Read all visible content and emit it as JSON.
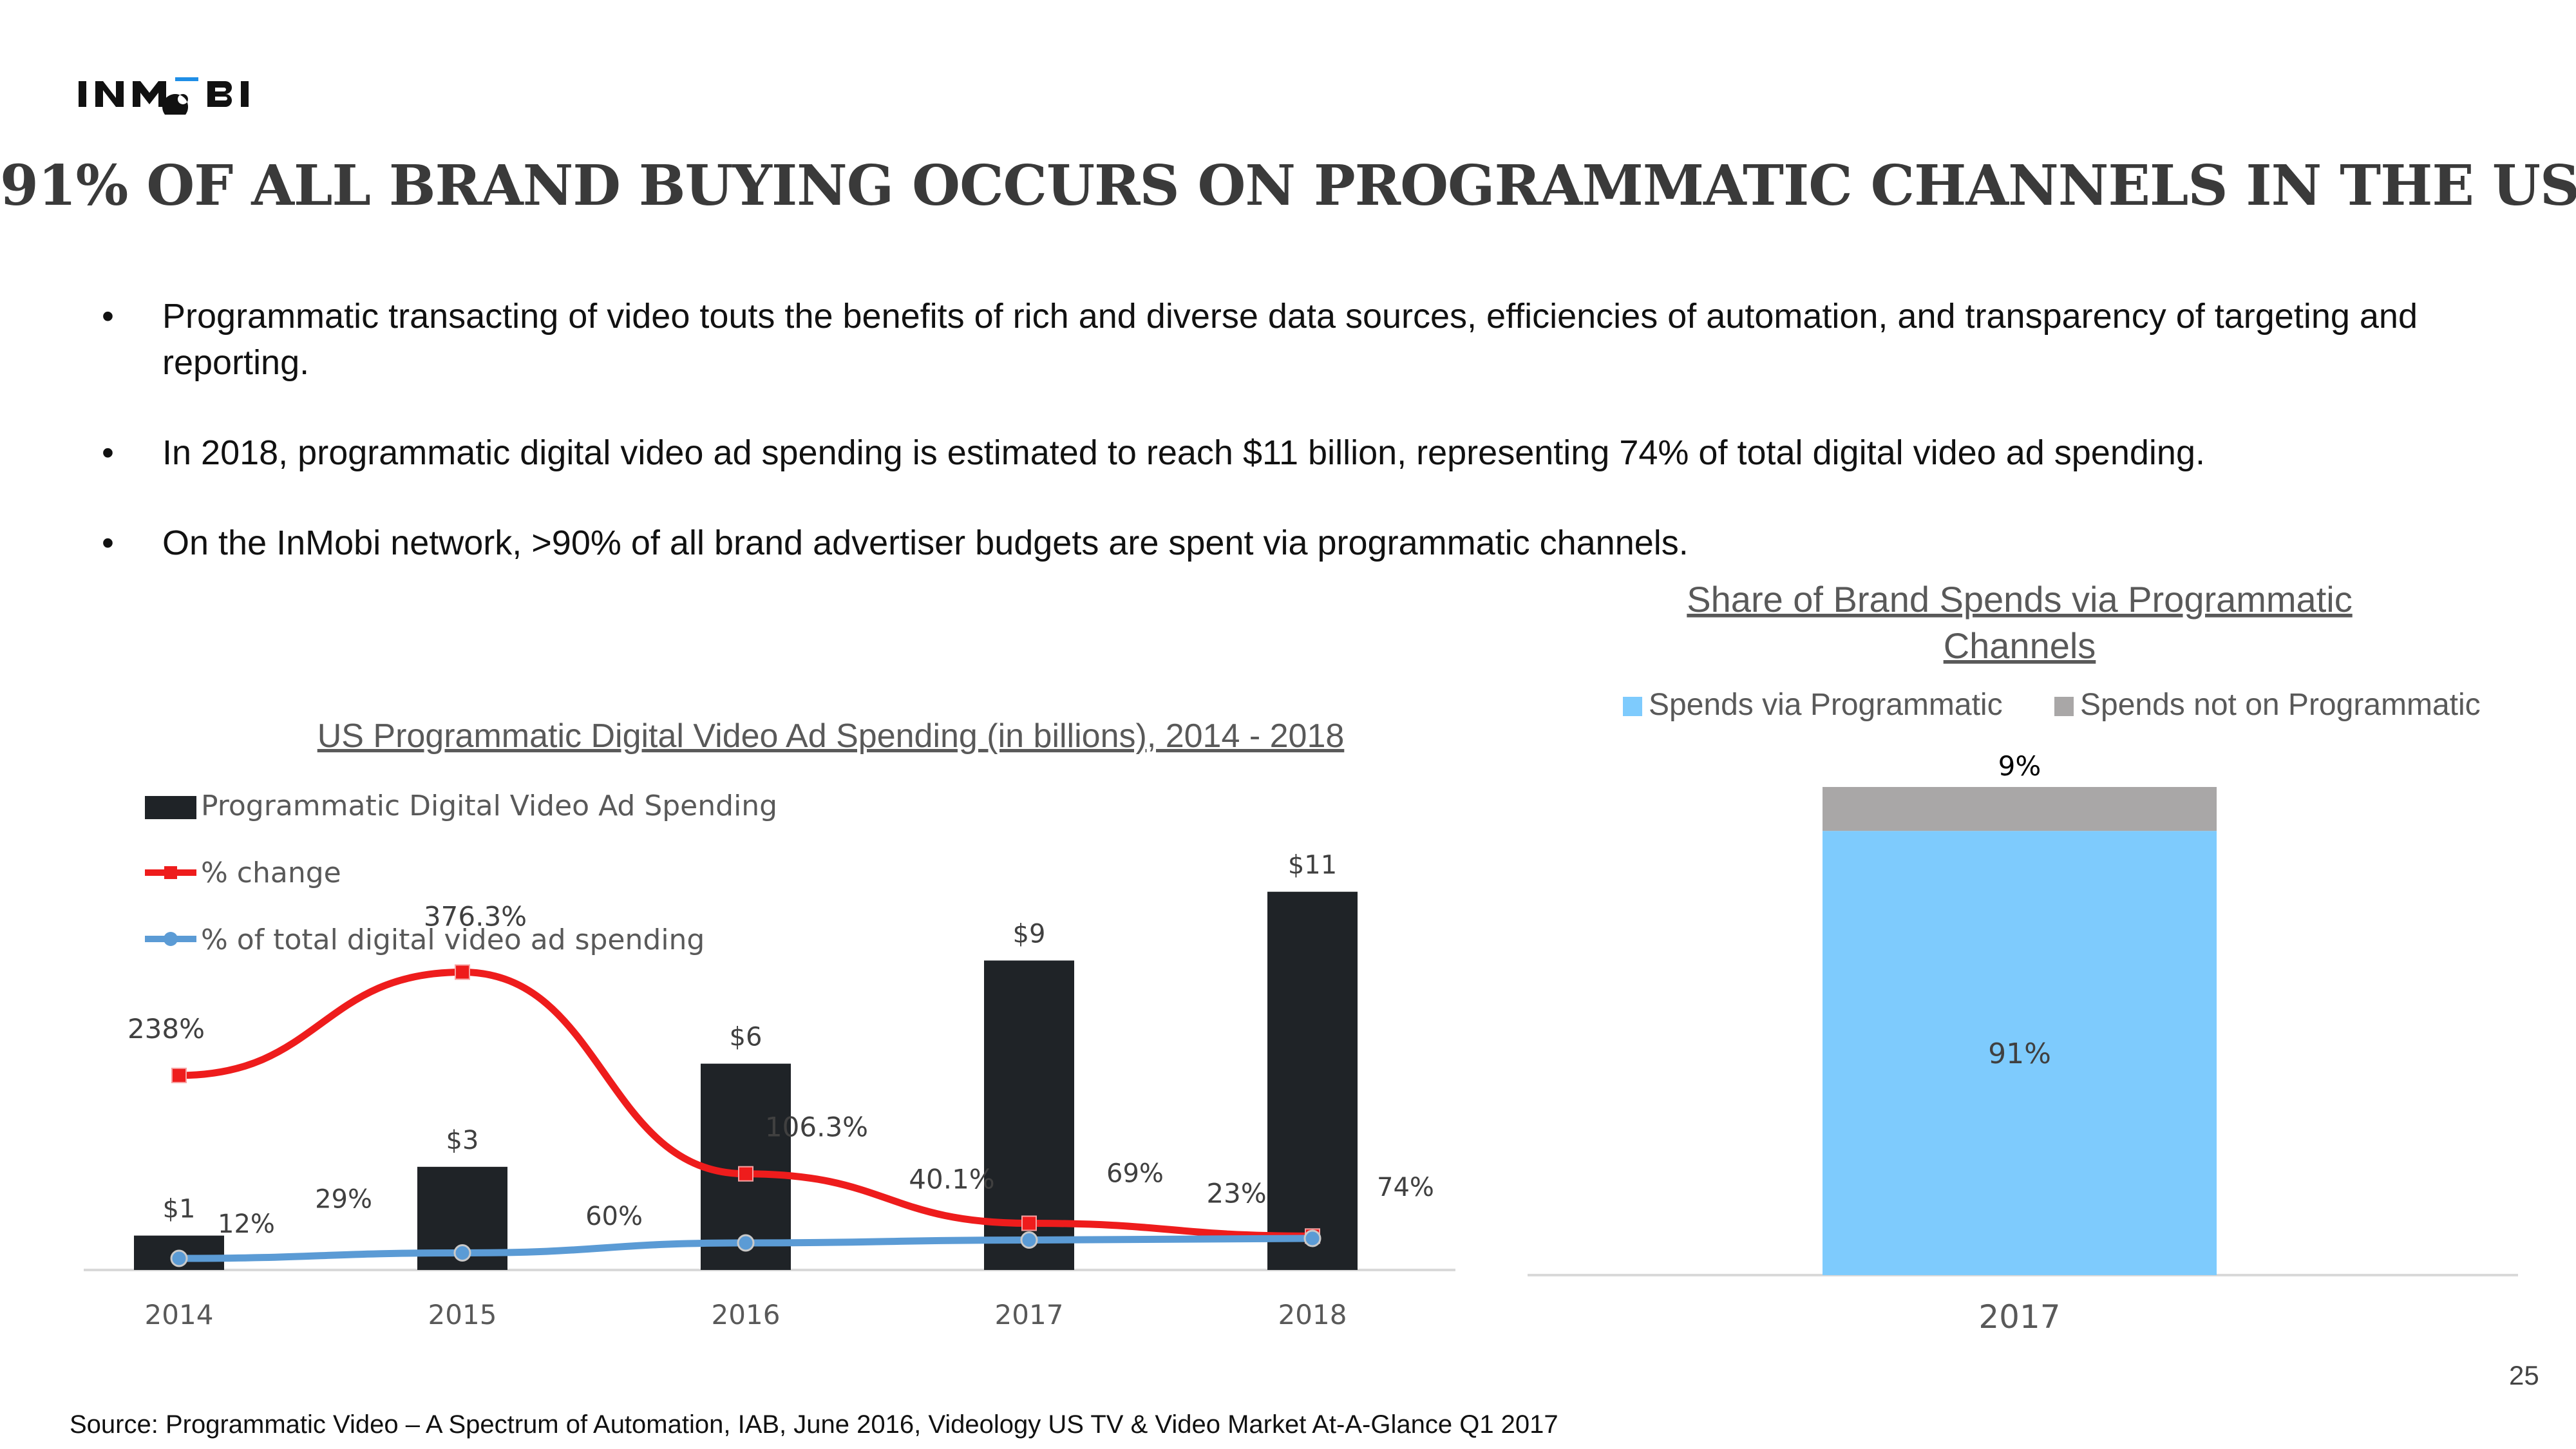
{
  "logo": {
    "text": "INMOBI"
  },
  "title": "91% OF ALL BRAND BUYING OCCURS ON PROGRAMMATIC CHANNELS IN THE US",
  "bullets": [
    "Programmatic transacting of video touts the benefits of rich and diverse data sources, efficiencies of automation, and transparency of targeting and reporting.",
    "In 2018, programmatic digital video ad spending is estimated to reach $11 billion, representing 74% of total digital video ad spending.",
    "On the InMobi network, >90% of all brand advertiser budgets are spent via programmatic channels."
  ],
  "bullet_symbol": "•",
  "chart_data": [
    {
      "type": "bar",
      "title": "US Programmatic Digital Video Ad Spending (in billions), 2014 - 2018",
      "categories": [
        "2014",
        "2015",
        "2016",
        "2017",
        "2018"
      ],
      "series": [
        {
          "name": "Programmatic Digital Video Ad Spending",
          "kind": "bar",
          "color": "#1f2327",
          "values": [
            1,
            3,
            6,
            9,
            11
          ],
          "labels": [
            "$1",
            "$3",
            "$6",
            "$9",
            "$11"
          ]
        },
        {
          "name": "% change",
          "kind": "line",
          "color": "#ee1c1c",
          "values": [
            238,
            376.3,
            106.3,
            40.1,
            23
          ],
          "labels": [
            "238%",
            "376.3%",
            "106.3%",
            "40.1%",
            "23%"
          ]
        },
        {
          "name": "% of total digital video ad spending",
          "kind": "line",
          "color": "#5b9bd5",
          "values": [
            12,
            29,
            60,
            69,
            74
          ],
          "labels": [
            "12%",
            "29%",
            "60%",
            "69%",
            "74%"
          ]
        }
      ],
      "ylim_bars": [
        0,
        11.5
      ],
      "legend_position": "top-left"
    },
    {
      "type": "bar",
      "stacked": true,
      "title": "Share of Brand Spends via Programmatic Channels",
      "title_lines": [
        "Share of Brand Spends via Programmatic",
        "Channels"
      ],
      "categories": [
        "2017"
      ],
      "series": [
        {
          "name": "Spends via Programmatic",
          "color": "#7ecbfd",
          "values": [
            91
          ],
          "labels": [
            "91%"
          ]
        },
        {
          "name": "Spends not on Programmatic",
          "color": "#a9a7a7",
          "values": [
            9
          ],
          "labels": [
            "9%"
          ]
        }
      ],
      "ylim": [
        0,
        100
      ],
      "legend_position": "top"
    }
  ],
  "source": "Source: Programmatic Video – A Spectrum of Automation, IAB, June 2016, Videology US TV & Video Market At-A-Glance Q1 2017",
  "page_number": "25"
}
